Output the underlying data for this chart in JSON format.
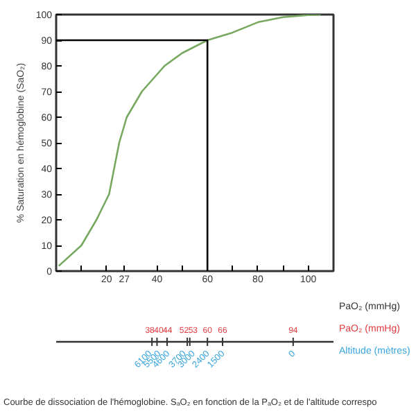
{
  "chart_data": {
    "type": "line",
    "title": "Courbe de dissociation de l'hémoglobine. SₐO₂ en fonction de la PₐO₂ et de l'altitude correspo",
    "ylabel": "% Saturation en hémoglobine (SaO₂)",
    "xlabel": "PaO₂ (mmHg)",
    "x2label": "PaO₂ (mmHg)",
    "xlim": [
      0,
      110
    ],
    "xticks": [
      {
        "value": 10,
        "label": null
      },
      20,
      27,
      40,
      {
        "value": 50,
        "label": null
      },
      60,
      {
        "value": 70,
        "label": null
      },
      80,
      {
        "value": 90,
        "label": null
      },
      100
    ],
    "ylim": [
      0,
      100
    ],
    "yticks": [
      0,
      10,
      20,
      30,
      40,
      50,
      60,
      70,
      80,
      90,
      100
    ],
    "x2lim": [
      0,
      110
    ],
    "x2ticks": [
      38,
      40,
      44,
      52,
      53,
      60,
      66,
      94
    ],
    "series": [
      {
        "color": "#77a860",
        "x": [
          1,
          10,
          16,
          21,
          23,
          25,
          28,
          34,
          43,
          50,
          60,
          70,
          80,
          90,
          100,
          105
        ],
        "values": [
          2,
          10,
          20,
          30,
          40,
          50,
          60,
          70,
          80,
          85,
          90,
          93,
          97,
          99,
          99.8,
          100
        ]
      },
      {
        "color": "#000000",
        "x": [
          0,
          60,
          60
        ],
        "values": [
          90,
          90,
          0
        ]
      }
    ],
    "grid": false,
    "annotations": [
      "Altitude (mètres)",
      "6100",
      "5500",
      "4600",
      "3700",
      "3000",
      "2400",
      "1500",
      "0"
    ]
  }
}
